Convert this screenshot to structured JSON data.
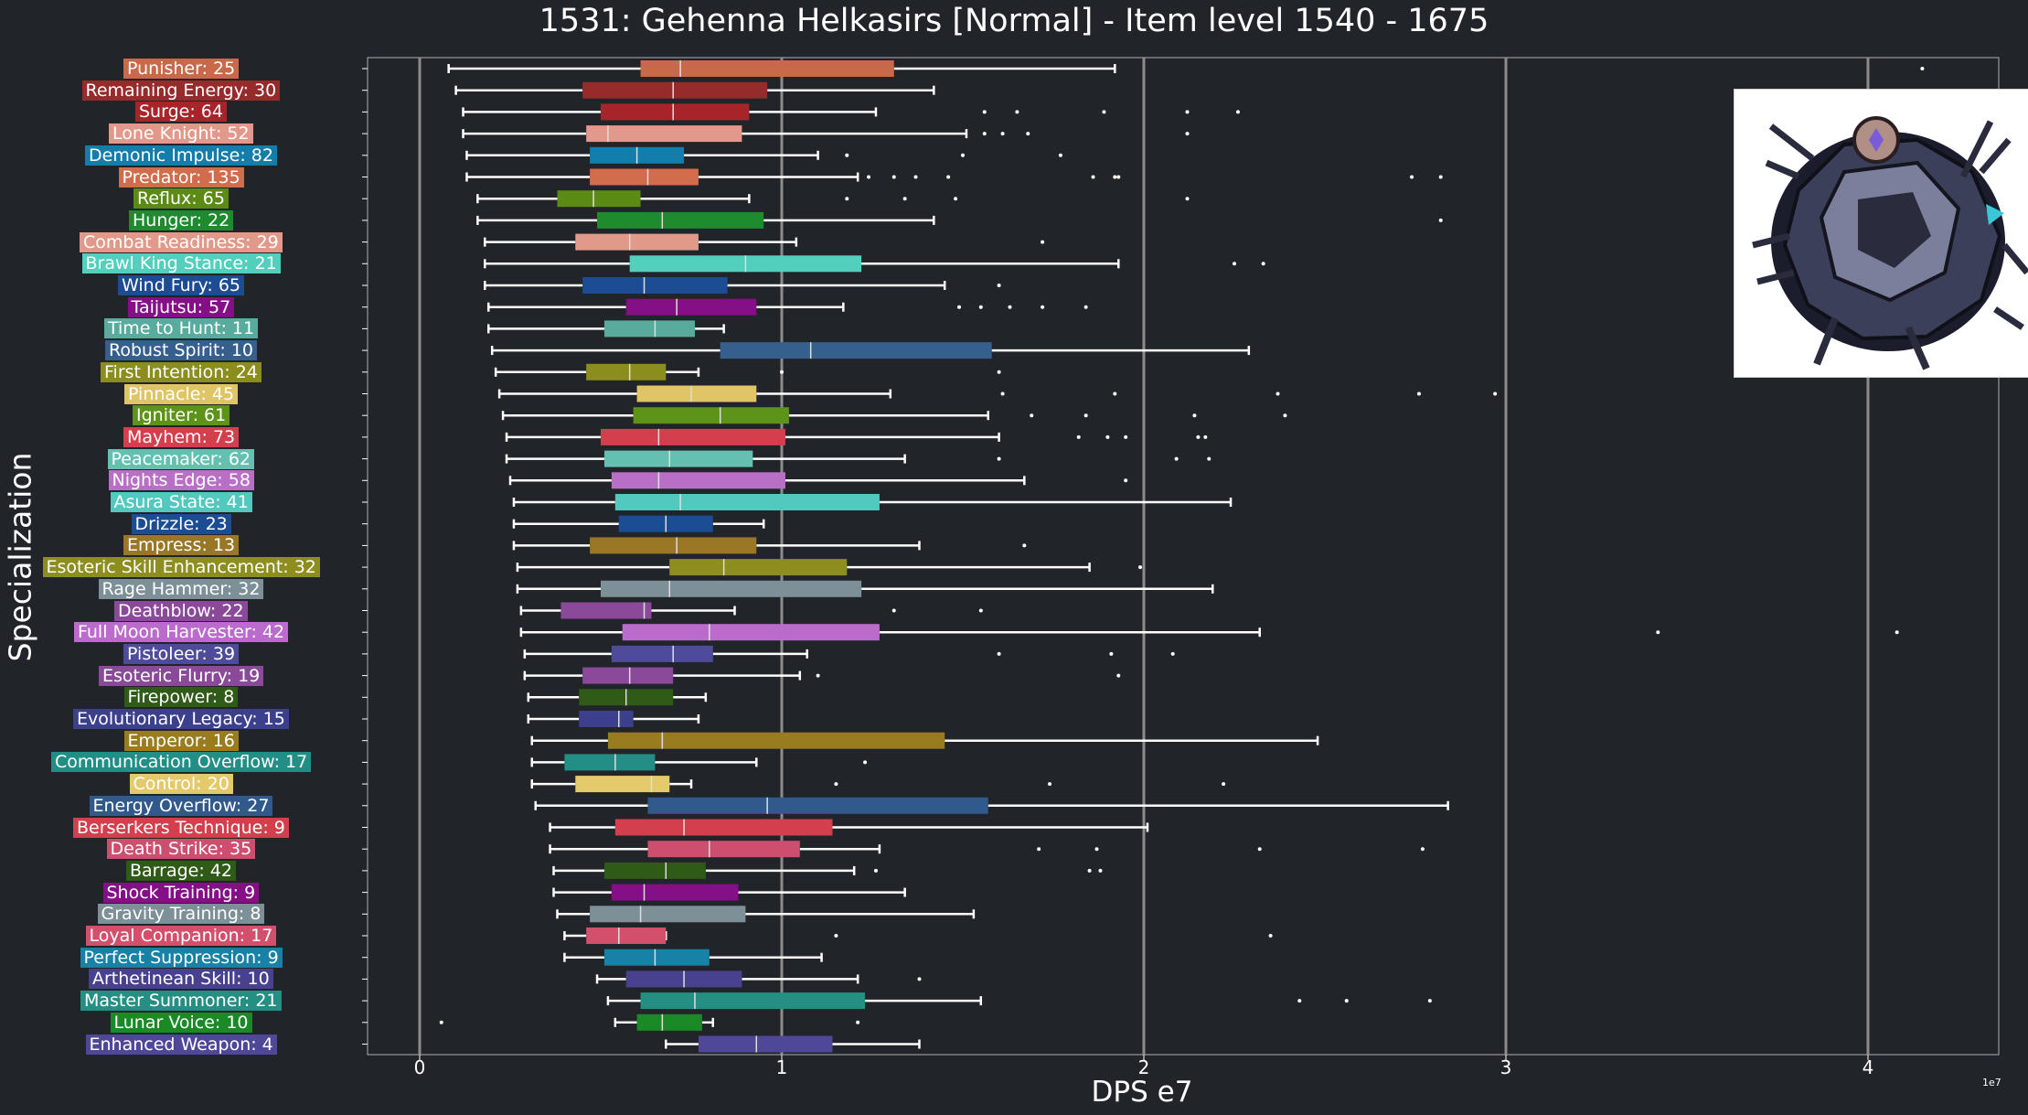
{
  "chart_data": {
    "type": "box",
    "title": "1531: Gehenna Helkasirs [Normal] - Item level 1540 - 1675",
    "xlabel": "DPS e7",
    "ylabel": "Specialization",
    "x_exponent_label": "1e7",
    "xlim": [
      -0.15,
      4.35
    ],
    "x_ticks": [
      0,
      1,
      2,
      3,
      4
    ],
    "x_tick_labels": [
      "0",
      "1",
      "2",
      "3",
      "4"
    ],
    "grid": "vertical major",
    "colors": {
      "background": "#212428",
      "grid": "#8c8c8c",
      "whisker": "#ffffff",
      "median": "#dddddd"
    },
    "series": [
      {
        "label": "Punisher: 25",
        "color": "#c8694a",
        "whisker_low": 0.08,
        "q1": 0.61,
        "median": 0.72,
        "q3": 1.31,
        "whisker_high": 1.92,
        "outliers": [
          4.15
        ]
      },
      {
        "label": "Remaining Energy: 30",
        "color": "#962b2b",
        "whisker_low": 0.1,
        "q1": 0.45,
        "median": 0.7,
        "q3": 0.96,
        "whisker_high": 1.42,
        "outliers": []
      },
      {
        "label": "Surge: 64",
        "color": "#a8242b",
        "whisker_low": 0.12,
        "q1": 0.5,
        "median": 0.7,
        "q3": 0.91,
        "whisker_high": 1.26,
        "outliers": [
          1.56,
          1.65,
          1.89,
          2.12,
          2.26
        ]
      },
      {
        "label": "Lone Knight: 52",
        "color": "#e2988a",
        "whisker_low": 0.12,
        "q1": 0.46,
        "median": 0.52,
        "q3": 0.89,
        "whisker_high": 1.51,
        "outliers": [
          1.56,
          1.61,
          1.68,
          2.12
        ]
      },
      {
        "label": "Demonic Impulse: 82",
        "color": "#137eab",
        "whisker_low": 0.13,
        "q1": 0.47,
        "median": 0.6,
        "q3": 0.73,
        "whisker_high": 1.1,
        "outliers": [
          1.18,
          1.5,
          1.77
        ]
      },
      {
        "label": "Predator: 135",
        "color": "#d16c4c",
        "whisker_low": 0.13,
        "q1": 0.47,
        "median": 0.63,
        "q3": 0.77,
        "whisker_high": 1.21,
        "outliers": [
          1.24,
          1.31,
          1.37,
          1.46,
          1.86,
          1.92,
          1.93,
          2.74,
          2.82
        ]
      },
      {
        "label": "Reflux: 65",
        "color": "#5c8b15",
        "whisker_low": 0.16,
        "q1": 0.38,
        "median": 0.48,
        "q3": 0.61,
        "whisker_high": 0.91,
        "outliers": [
          1.18,
          1.34,
          1.48,
          2.12
        ]
      },
      {
        "label": "Hunger: 22",
        "color": "#1e8b2f",
        "whisker_low": 0.16,
        "q1": 0.49,
        "median": 0.67,
        "q3": 0.95,
        "whisker_high": 1.42,
        "outliers": [
          2.82
        ]
      },
      {
        "label": "Combat Readiness: 29",
        "color": "#e19a8a",
        "whisker_low": 0.18,
        "q1": 0.43,
        "median": 0.58,
        "q3": 0.77,
        "whisker_high": 1.04,
        "outliers": [
          1.72
        ]
      },
      {
        "label": "Brawl King Stance: 21",
        "color": "#52cfbd",
        "whisker_low": 0.18,
        "q1": 0.58,
        "median": 0.9,
        "q3": 1.22,
        "whisker_high": 1.93,
        "outliers": [
          2.25,
          2.33
        ]
      },
      {
        "label": "Wind Fury: 65",
        "color": "#1c4c94",
        "whisker_low": 0.18,
        "q1": 0.45,
        "median": 0.62,
        "q3": 0.85,
        "whisker_high": 1.45,
        "outliers": [
          1.6
        ]
      },
      {
        "label": "Taijutsu: 57",
        "color": "#850f87",
        "whisker_low": 0.19,
        "q1": 0.57,
        "median": 0.71,
        "q3": 0.93,
        "whisker_high": 1.17,
        "outliers": [
          1.49,
          1.55,
          1.63,
          1.72,
          1.84
        ]
      },
      {
        "label": "Time to Hunt: 11",
        "color": "#58ab9d",
        "whisker_low": 0.19,
        "q1": 0.51,
        "median": 0.65,
        "q3": 0.76,
        "whisker_high": 0.84,
        "outliers": []
      },
      {
        "label": "Robust Spirit: 10",
        "color": "#365f8d",
        "whisker_low": 0.2,
        "q1": 0.83,
        "median": 1.08,
        "q3": 1.58,
        "whisker_high": 2.29,
        "outliers": []
      },
      {
        "label": "First Intention: 24",
        "color": "#8b8e1d",
        "whisker_low": 0.21,
        "q1": 0.46,
        "median": 0.58,
        "q3": 0.68,
        "whisker_high": 0.77,
        "outliers": [
          1.0,
          1.6
        ]
      },
      {
        "label": "Pinnacle: 45",
        "color": "#dfc565",
        "whisker_low": 0.22,
        "q1": 0.6,
        "median": 0.75,
        "q3": 0.93,
        "whisker_high": 1.3,
        "outliers": [
          1.61,
          1.92,
          2.37,
          2.76,
          2.97
        ]
      },
      {
        "label": "Igniter: 61",
        "color": "#5c9318",
        "whisker_low": 0.23,
        "q1": 0.59,
        "median": 0.83,
        "q3": 1.02,
        "whisker_high": 1.57,
        "outliers": [
          1.69,
          1.84,
          2.14,
          2.39
        ]
      },
      {
        "label": "Mayhem: 73",
        "color": "#d33f4c",
        "whisker_low": 0.24,
        "q1": 0.5,
        "median": 0.66,
        "q3": 1.01,
        "whisker_high": 1.6,
        "outliers": [
          1.82,
          1.9,
          1.95,
          2.15,
          2.17
        ]
      },
      {
        "label": "Peacemaker: 62",
        "color": "#65c0b2",
        "whisker_low": 0.24,
        "q1": 0.51,
        "median": 0.69,
        "q3": 0.92,
        "whisker_high": 1.34,
        "outliers": [
          1.6,
          2.09,
          2.18
        ]
      },
      {
        "label": "Nights Edge: 58",
        "color": "#b96fc6",
        "whisker_low": 0.25,
        "q1": 0.53,
        "median": 0.66,
        "q3": 1.01,
        "whisker_high": 1.67,
        "outliers": [
          1.95
        ]
      },
      {
        "label": "Asura State: 41",
        "color": "#52c8be",
        "whisker_low": 0.26,
        "q1": 0.54,
        "median": 0.72,
        "q3": 1.27,
        "whisker_high": 2.24,
        "outliers": []
      },
      {
        "label": "Drizzle: 23",
        "color": "#1b4d94",
        "whisker_low": 0.26,
        "q1": 0.55,
        "median": 0.68,
        "q3": 0.81,
        "whisker_high": 0.95,
        "outliers": []
      },
      {
        "label": "Empress: 13",
        "color": "#997727",
        "whisker_low": 0.26,
        "q1": 0.47,
        "median": 0.71,
        "q3": 0.93,
        "whisker_high": 1.38,
        "outliers": [
          1.67
        ]
      },
      {
        "label": "Esoteric Skill Enhancement: 32",
        "color": "#8e8d1f",
        "whisker_low": 0.27,
        "q1": 0.69,
        "median": 0.84,
        "q3": 1.18,
        "whisker_high": 1.85,
        "outliers": [
          1.99
        ]
      },
      {
        "label": "Rage Hammer: 32",
        "color": "#7d8f97",
        "whisker_low": 0.27,
        "q1": 0.5,
        "median": 0.69,
        "q3": 1.22,
        "whisker_high": 2.19,
        "outliers": []
      },
      {
        "label": "Deathblow: 22",
        "color": "#8b4a99",
        "whisker_low": 0.28,
        "q1": 0.39,
        "median": 0.62,
        "q3": 0.64,
        "whisker_high": 0.87,
        "outliers": [
          1.31,
          1.55
        ]
      },
      {
        "label": "Full Moon Harvester: 42",
        "color": "#bb6bcb",
        "whisker_low": 0.28,
        "q1": 0.56,
        "median": 0.8,
        "q3": 1.27,
        "whisker_high": 2.32,
        "outliers": [
          3.42,
          4.08
        ]
      },
      {
        "label": "Pistoleer: 39",
        "color": "#4f4b9b",
        "whisker_low": 0.29,
        "q1": 0.53,
        "median": 0.7,
        "q3": 0.81,
        "whisker_high": 1.07,
        "outliers": [
          1.6,
          1.91,
          2.08
        ]
      },
      {
        "label": "Esoteric Flurry: 19",
        "color": "#8b4a99",
        "whisker_low": 0.29,
        "q1": 0.45,
        "median": 0.58,
        "q3": 0.7,
        "whisker_high": 1.05,
        "outliers": [
          1.1,
          1.93
        ]
      },
      {
        "label": "Firepower: 8",
        "color": "#2f5a17",
        "whisker_low": 0.3,
        "q1": 0.44,
        "median": 0.57,
        "q3": 0.7,
        "whisker_high": 0.79,
        "outliers": []
      },
      {
        "label": "Evolutionary Legacy: 15",
        "color": "#3c3f8c",
        "whisker_low": 0.3,
        "q1": 0.44,
        "median": 0.55,
        "q3": 0.59,
        "whisker_high": 0.77,
        "outliers": []
      },
      {
        "label": "Emperor: 16",
        "color": "#987c1f",
        "whisker_low": 0.31,
        "q1": 0.52,
        "median": 0.67,
        "q3": 1.45,
        "whisker_high": 2.48,
        "outliers": []
      },
      {
        "label": "Communication Overflow: 17",
        "color": "#228e85",
        "whisker_low": 0.31,
        "q1": 0.4,
        "median": 0.54,
        "q3": 0.65,
        "whisker_high": 0.93,
        "outliers": [
          1.23
        ]
      },
      {
        "label": "Control: 20",
        "color": "#e5ca6c",
        "whisker_low": 0.31,
        "q1": 0.43,
        "median": 0.64,
        "q3": 0.69,
        "whisker_high": 0.75,
        "outliers": [
          1.15,
          1.74,
          2.22
        ]
      },
      {
        "label": "Energy Overflow: 27",
        "color": "#31598b",
        "whisker_low": 0.32,
        "q1": 0.63,
        "median": 0.96,
        "q3": 1.57,
        "whisker_high": 2.84,
        "outliers": []
      },
      {
        "label": "Berserkers Technique: 9",
        "color": "#d33f4d",
        "whisker_low": 0.36,
        "q1": 0.54,
        "median": 0.73,
        "q3": 1.14,
        "whisker_high": 2.01,
        "outliers": []
      },
      {
        "label": "Death Strike: 35",
        "color": "#cd4e6e",
        "whisker_low": 0.36,
        "q1": 0.63,
        "median": 0.8,
        "q3": 1.05,
        "whisker_high": 1.27,
        "outliers": [
          1.71,
          1.87,
          2.32,
          2.77
        ]
      },
      {
        "label": "Barrage: 42",
        "color": "#2f5a17",
        "whisker_low": 0.37,
        "q1": 0.51,
        "median": 0.68,
        "q3": 0.79,
        "whisker_high": 1.2,
        "outliers": [
          1.26,
          1.85,
          1.88
        ]
      },
      {
        "label": "Shock Training: 9",
        "color": "#850f87",
        "whisker_low": 0.37,
        "q1": 0.53,
        "median": 0.62,
        "q3": 0.88,
        "whisker_high": 1.34,
        "outliers": []
      },
      {
        "label": "Gravity Training: 8",
        "color": "#7d8f97",
        "whisker_low": 0.38,
        "q1": 0.47,
        "median": 0.61,
        "q3": 0.9,
        "whisker_high": 1.53,
        "outliers": []
      },
      {
        "label": "Loyal Companion: 17",
        "color": "#d3506d",
        "whisker_low": 0.4,
        "q1": 0.46,
        "median": 0.55,
        "q3": 0.68,
        "whisker_high": 0.68,
        "outliers": [
          1.15,
          2.35
        ]
      },
      {
        "label": "Perfect Suppression: 9",
        "color": "#1881a6",
        "whisker_low": 0.4,
        "q1": 0.51,
        "median": 0.65,
        "q3": 0.8,
        "whisker_high": 1.11,
        "outliers": []
      },
      {
        "label": "Arthetinean Skill: 10",
        "color": "#48428e",
        "whisker_low": 0.49,
        "q1": 0.57,
        "median": 0.73,
        "q3": 0.89,
        "whisker_high": 1.21,
        "outliers": [
          1.38
        ]
      },
      {
        "label": "Master Summoner: 21",
        "color": "#268f83",
        "whisker_low": 0.52,
        "q1": 0.61,
        "median": 0.76,
        "q3": 1.23,
        "whisker_high": 1.55,
        "outliers": [
          2.43,
          2.56,
          2.79
        ]
      },
      {
        "label": "Lunar Voice: 10",
        "color": "#1a8a27",
        "whisker_low": 0.54,
        "q1": 0.6,
        "median": 0.67,
        "q3": 0.78,
        "whisker_high": 0.81,
        "outliers": [
          0.06,
          1.21
        ]
      },
      {
        "label": "Enhanced Weapon: 4",
        "color": "#4f4899",
        "whisker_low": 0.68,
        "q1": 0.77,
        "median": 0.93,
        "q3": 1.14,
        "whisker_high": 1.38,
        "outliers": []
      }
    ]
  },
  "thumbnail": {
    "icon": "gehenna-helkasirs-boss-portrait"
  }
}
